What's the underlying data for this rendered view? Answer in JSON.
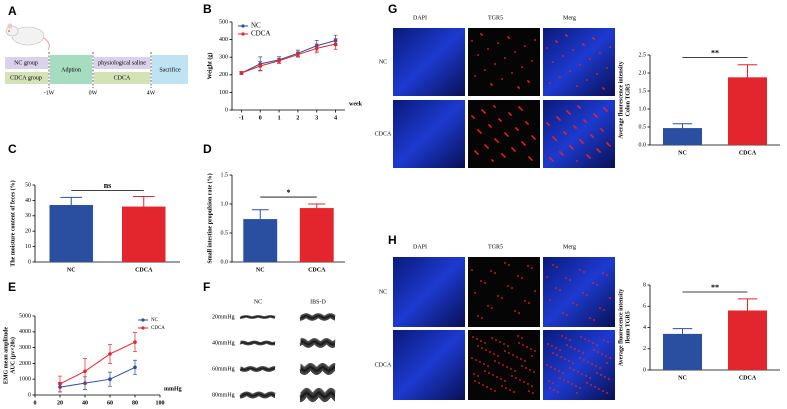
{
  "panel_letters": [
    "A",
    "B",
    "C",
    "D",
    "E",
    "F",
    "G",
    "H"
  ],
  "diagram": {
    "nc_group": "NC  group",
    "cdca_group": "CDCA group",
    "adaption": "Adption",
    "saline": "physiological saline",
    "cdca": "CDCA",
    "sacrifice": "Sacrifice",
    "timepoints": [
      "-1W",
      "0W",
      "4W"
    ]
  },
  "emg_traces": {
    "groups": [
      "NC",
      "IBS-D"
    ],
    "pressures": [
      "20mmHg",
      "40mmHg",
      "60mmHg",
      "80mmHg"
    ]
  },
  "colon_images": {
    "columns": [
      "DAPI",
      "TGR5",
      "Merg"
    ],
    "rows": [
      "NC",
      "CDCA"
    ]
  },
  "ileum_images": {
    "columns": [
      "DAPI",
      "TGR5",
      "Merg"
    ],
    "rows": [
      "NC",
      "CDCA"
    ]
  },
  "chart_data": [
    {
      "type": "line",
      "ylabel": [
        "Weight (g)"
      ],
      "xlabel": "week",
      "x": [
        -1,
        0,
        1,
        2,
        3,
        4
      ],
      "xlim": [
        -1.5,
        4.5
      ],
      "xticks": [
        -1,
        0,
        1,
        2,
        3,
        4
      ],
      "ylim": [
        0,
        500
      ],
      "yticks": [
        0,
        100,
        200,
        300,
        400,
        500
      ],
      "legend": "top-left",
      "series": [
        {
          "name": "NC",
          "color": "#2a4fa0",
          "values": [
            210,
            262,
            285,
            322,
            365,
            395
          ],
          "errors": [
            8,
            40,
            18,
            18,
            30,
            30
          ]
        },
        {
          "name": "CDCA",
          "color": "#e3262d",
          "values": [
            210,
            250,
            280,
            315,
            350,
            375
          ],
          "errors": [
            8,
            25,
            15,
            15,
            25,
            30
          ]
        }
      ]
    },
    {
      "type": "bar",
      "ylabel": [
        "The moisture content of feces (%)"
      ],
      "categories": [
        "NC",
        "CDCA"
      ],
      "values": [
        37,
        36
      ],
      "errors": [
        5,
        6.5
      ],
      "colors": [
        "#2a4fa0",
        "#e3262d"
      ],
      "ylim": [
        0,
        50
      ],
      "yticks": [
        0,
        10,
        20,
        30,
        40,
        50
      ],
      "annotation": "ns"
    },
    {
      "type": "bar",
      "ylabel": [
        "Small intestine propulsion rate (%)"
      ],
      "categories": [
        "NC",
        "CDCA"
      ],
      "values": [
        0.74,
        0.93
      ],
      "errors": [
        0.16,
        0.07
      ],
      "colors": [
        "#2a4fa0",
        "#e3262d"
      ],
      "ylim": [
        0,
        1.5
      ],
      "yticks": [
        {
          "value": 0,
          "label": "0.0"
        },
        {
          "value": 0.5,
          "label": "0.5"
        },
        {
          "value": 1,
          "label": "1.0"
        },
        {
          "value": 1.5,
          "label": "1.5"
        }
      ],
      "annotation": "*"
    },
    {
      "type": "line",
      "ylabel": [
        "EMG mean amplitude",
        "AUC (μv×20s)"
      ],
      "xlabel": "mmHg",
      "x": [
        20,
        40,
        60,
        80
      ],
      "xlim": [
        0,
        100
      ],
      "xticks": [
        0,
        20,
        40,
        60,
        80,
        100
      ],
      "ylim": [
        0,
        5000
      ],
      "yticks": [
        0,
        1000,
        2000,
        3000,
        4000,
        5000
      ],
      "legend": "top-right",
      "series": [
        {
          "name": "NC",
          "color": "#2a4fa0",
          "values": [
            500,
            750,
            1000,
            1750
          ],
          "errors": [
            300,
            400,
            450,
            450
          ]
        },
        {
          "name": "CDCA",
          "color": "#e3262d",
          "values": [
            700,
            1500,
            2600,
            3350
          ],
          "errors": [
            500,
            800,
            600,
            600
          ]
        }
      ]
    },
    {
      "type": "bar",
      "ylabel": [
        "Average fluorescence intensity",
        "Colon TGR5"
      ],
      "categories": [
        "NC",
        "CDCA"
      ],
      "values": [
        0.47,
        1.88
      ],
      "errors": [
        0.12,
        0.35
      ],
      "colors": [
        "#2a4fa0",
        "#e3262d"
      ],
      "ylim": [
        0,
        2.5
      ],
      "yticks": [
        {
          "value": 0,
          "label": "0.0"
        },
        {
          "value": 0.5,
          "label": "0.5"
        },
        {
          "value": 1,
          "label": "1.0"
        },
        {
          "value": 1.5,
          "label": "1.5"
        },
        {
          "value": 2,
          "label": "2.0"
        },
        {
          "value": 2.5,
          "label": "2.5"
        }
      ],
      "annotation": "**"
    },
    {
      "type": "bar",
      "ylabel": [
        "Average fluorescence intensity",
        "Ileum TGR5"
      ],
      "categories": [
        "NC",
        "CDCA"
      ],
      "values": [
        3.4,
        5.6
      ],
      "errors": [
        0.5,
        1.1
      ],
      "colors": [
        "#2a4fa0",
        "#e3262d"
      ],
      "ylim": [
        0,
        8
      ],
      "yticks": [
        0,
        2,
        4,
        6,
        8
      ],
      "annotation": "**"
    }
  ]
}
